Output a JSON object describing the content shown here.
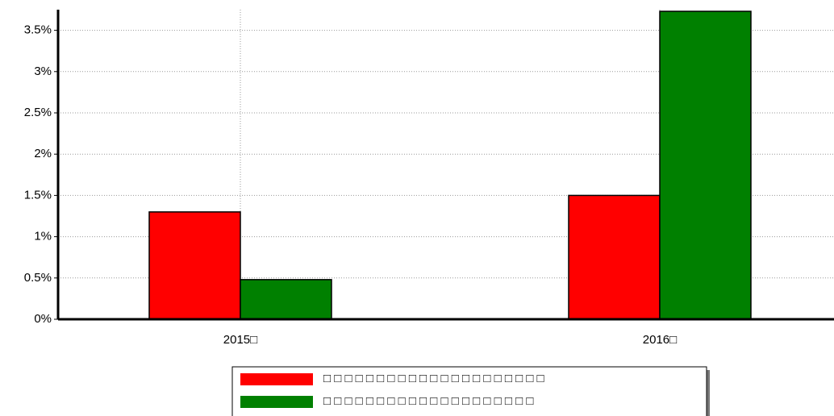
{
  "chart_data": {
    "type": "bar",
    "categories": [
      "2015□",
      "2016□"
    ],
    "series": [
      {
        "name": "□ □ □ □ □ □ □ □ □ □ □ □ □ □ □ □ □ □ □ □ □",
        "color": "#ff0000",
        "values": [
          1.3,
          1.5
        ]
      },
      {
        "name": "□ □ □ □ □ □ □ □ □ □ □ □ □ □ □ □ □ □ □ □",
        "color": "#008000",
        "values": [
          0.48,
          3.73
        ]
      }
    ],
    "ylim": [
      0,
      3.75
    ],
    "yticks": [
      {
        "value": 0,
        "label": "0%"
      },
      {
        "value": 0.5,
        "label": "0.5%"
      },
      {
        "value": 1,
        "label": "1%"
      },
      {
        "value": 1.5,
        "label": "1.5%"
      },
      {
        "value": 2,
        "label": "2%"
      },
      {
        "value": 2.5,
        "label": "2.5%"
      },
      {
        "value": 3,
        "label": "3%"
      },
      {
        "value": 3.5,
        "label": "3.5%"
      }
    ],
    "grid": true
  }
}
